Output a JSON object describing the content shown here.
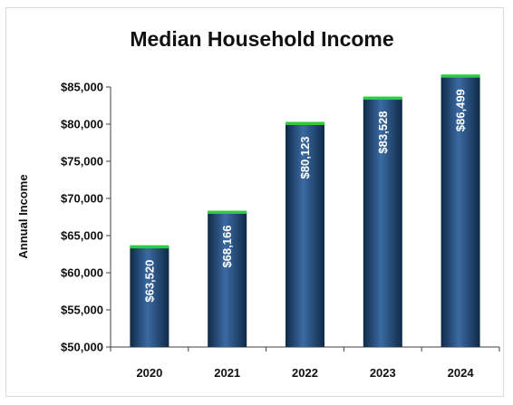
{
  "chart_data": {
    "type": "bar",
    "title": "Median Household Income",
    "xlabel": "",
    "ylabel": "Annual Income",
    "categories": [
      "2020",
      "2021",
      "2022",
      "2023",
      "2024"
    ],
    "values": [
      63520,
      68166,
      80123,
      83528,
      86499
    ],
    "data_labels": [
      "$63,520",
      "$68,166",
      "$80,123",
      "$83,528",
      "$86,499"
    ],
    "ylim": [
      50000,
      85000
    ],
    "y_ticks": [
      50000,
      55000,
      60000,
      65000,
      70000,
      75000,
      80000,
      85000
    ],
    "y_tick_labels": [
      "$50,000",
      "$55,000",
      "$60,000",
      "$65,000",
      "$70,000",
      "$75,000",
      "$80,000",
      "$85,000"
    ],
    "grid": false,
    "legend": "none",
    "colors": {
      "bar_edge": "#0f2a47",
      "bar_mid": "#2f5a8c",
      "bar_highlight": "#3b6aa3",
      "bar_cap": "#2ecc40",
      "axis": "#404040",
      "label": "#ffffff"
    }
  }
}
